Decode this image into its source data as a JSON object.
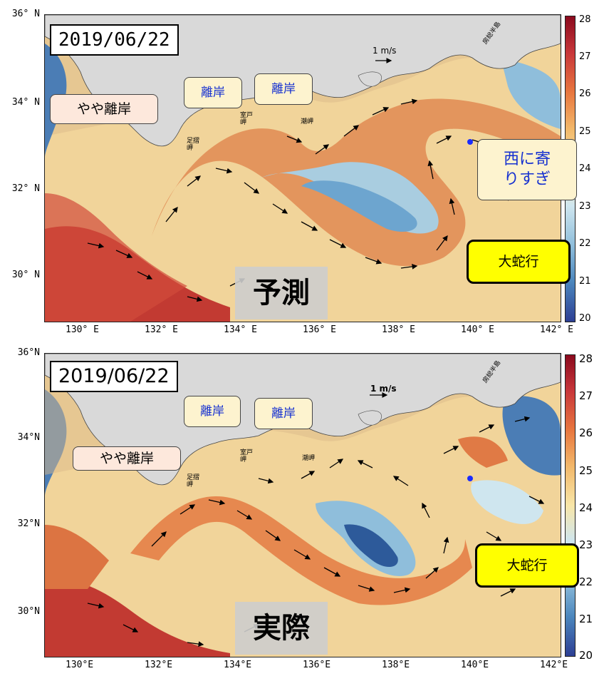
{
  "panels": [
    {
      "id": "forecast",
      "date": "2019/06/22",
      "title": "予測",
      "yticks": [
        "36° N",
        "34° N",
        "32° N",
        "30° N"
      ],
      "xticks": [
        "130° E",
        "132° E",
        "134° E",
        "136° E",
        "138° E",
        "140° E",
        "142° E"
      ],
      "colorbar_ticks": [
        "28",
        "27",
        "26",
        "25",
        "24",
        "23",
        "22",
        "21",
        "20"
      ],
      "vector_ref": "1 m/s",
      "places": {
        "ashizuri": "足摺\n岬",
        "muroto": "室戸\n岬",
        "shionomisaki": "潮岬",
        "boso": "房総半島"
      },
      "callouts": {
        "slight_offshore": "やや離岸",
        "offshore_1": "離岸",
        "offshore_2": "離岸",
        "too_west": "西に寄\nりすぎ",
        "large_meander": "大蛇行"
      }
    },
    {
      "id": "actual",
      "date": "2019/06/22",
      "title": "実際",
      "yticks": [
        "36°N",
        "34°N",
        "32°N",
        "30°N"
      ],
      "xticks": [
        "130°E",
        "132°E",
        "134°E",
        "136°E",
        "138°E",
        "140°E",
        "142°E"
      ],
      "colorbar_ticks": [
        "28",
        "27",
        "26",
        "25",
        "24",
        "23",
        "22",
        "21",
        "20"
      ],
      "vector_ref": "1 m/s",
      "places": {
        "ashizuri": "足摺\n岬",
        "muroto": "室戸\n岬",
        "shionomisaki": "潮岬",
        "boso": "房総半島"
      },
      "callouts": {
        "slight_offshore": "やや離岸",
        "offshore_1": "離岸",
        "offshore_2": "離岸",
        "large_meander": "大蛇行"
      }
    }
  ],
  "colors": {
    "warm": "#c8373a",
    "cool": "#2d5a9a",
    "land": "#d9d9d9",
    "highlight": "#ffff00",
    "marker": "#1a2cff"
  }
}
